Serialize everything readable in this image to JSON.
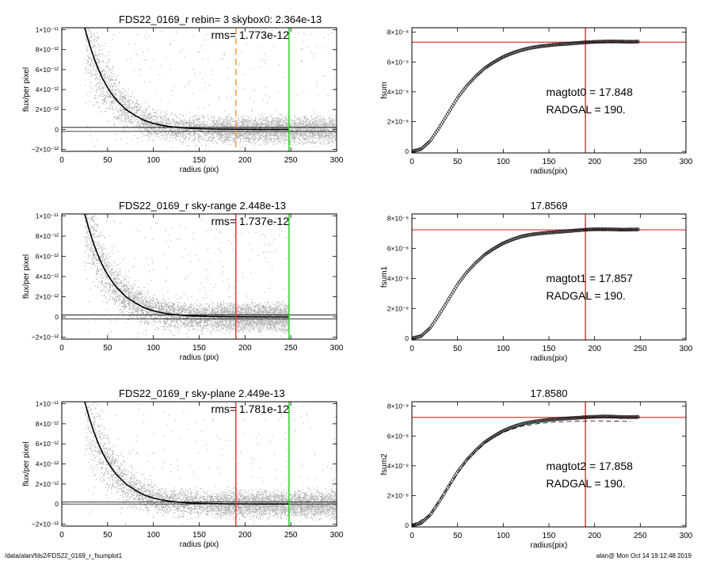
{
  "footer": {
    "path": "/data/alan/fds2/FDS22_0169_r_fsumplot1",
    "user_date": "alan@  Mon Oct 14 19:12:48 2019"
  },
  "colors": {
    "points": "#a0a0a0",
    "profile": "#000000",
    "red_line": "#e03a3a",
    "green_line": "#2bd12b",
    "orange_line": "#f0a040"
  },
  "chart_data": [
    {
      "type": "scatter",
      "panel": "left-top",
      "title": "FDS22_0169_r rebin= 3    skybox0:  2.364e-13",
      "annotation": "rms= 1.773e-12",
      "xlabel": "radius (pix)",
      "ylabel": "flux/per pixel",
      "xlim": [
        0,
        300
      ],
      "ylim": [
        -2.2e-12,
        1.02e-11
      ],
      "xticks": [
        0,
        50,
        100,
        150,
        200,
        250,
        300
      ],
      "xtick_labels": [
        "0",
        "50",
        "100",
        "150",
        "200",
        "250",
        "300"
      ],
      "yticks": [
        -2e-12,
        0,
        2e-12,
        4e-12,
        6e-12,
        8e-12,
        1e-11
      ],
      "ytick_labels": [
        "−2×10⁻¹²",
        "0",
        "2×10⁻¹²",
        "4×10⁻¹²",
        "6×10⁻¹²",
        "8×10⁻¹²",
        "1×10⁻¹¹"
      ],
      "profile": {
        "r": [
          25,
          30,
          35,
          40,
          45,
          50,
          55,
          60,
          70,
          80,
          90,
          100,
          110,
          120,
          140,
          160,
          180,
          200,
          220,
          248
        ],
        "flux": [
          1.02e-11,
          8.6e-12,
          7.2e-12,
          6e-12,
          5e-12,
          4.2e-12,
          3.5e-12,
          2.9e-12,
          2e-12,
          1.4e-12,
          9e-13,
          6e-13,
          4e-13,
          2.5e-13,
          1e-13,
          5e-14,
          2e-14,
          1e-14,
          5e-15,
          0
        ]
      },
      "sky_band": [
        -2e-13,
        2e-13
      ],
      "scatter_range": [
        -2e-12,
        1e-11
      ],
      "scatter_extent": 300,
      "vlines": [
        {
          "x": 190,
          "color": "#f0a040",
          "style": "dashed"
        },
        {
          "x": 248,
          "color": "#2bd12b",
          "style": "solid"
        }
      ]
    },
    {
      "type": "line",
      "panel": "right-top",
      "title": "",
      "xlabel": "radius(pix)",
      "ylabel": "fsum",
      "xlim": [
        0,
        300
      ],
      "ylim": [
        -1e-09,
        8.3e-08
      ],
      "xticks": [
        0,
        50,
        100,
        150,
        200,
        250,
        300
      ],
      "xtick_labels": [
        "0",
        "50",
        "100",
        "150",
        "200",
        "250",
        "300"
      ],
      "yticks": [
        0,
        2e-08,
        4e-08,
        6e-08,
        8e-08
      ],
      "ytick_labels": [
        "0",
        "2×10⁻⁸",
        "4×10⁻⁸",
        "6×10⁻⁸",
        "8×10⁻⁸"
      ],
      "curve": {
        "r": [
          0,
          10,
          20,
          30,
          40,
          50,
          60,
          70,
          80,
          90,
          100,
          110,
          120,
          130,
          140,
          150,
          160,
          170,
          180,
          190,
          200,
          210,
          220,
          230,
          240,
          248
        ],
        "fsum": [
          0,
          1.5e-09,
          7e-09,
          1.6e-08,
          2.6e-08,
          3.6e-08,
          4.4e-08,
          5.05e-08,
          5.6e-08,
          6e-08,
          6.35e-08,
          6.6e-08,
          6.8e-08,
          6.95e-08,
          7.05e-08,
          7.12e-08,
          7.18e-08,
          7.22e-08,
          7.27e-08,
          7.32e-08,
          7.35e-08,
          7.37e-08,
          7.38e-08,
          7.37e-08,
          7.36e-08,
          7.37e-08
        ]
      },
      "hline": 7.33e-08,
      "vline": 190,
      "annotations": [
        "magtot0 =  17.848",
        "RADGAL =    190."
      ]
    },
    {
      "type": "scatter",
      "panel": "left-middle",
      "title": "FDS22_0169_r sky-range  2.448e-13",
      "annotation": "rms= 1.737e-12",
      "xlabel": "radius (pix)",
      "ylabel": "flux/per pixel",
      "xlim": [
        0,
        300
      ],
      "ylim": [
        -2.2e-12,
        1.02e-11
      ],
      "xticks": [
        0,
        50,
        100,
        150,
        200,
        250,
        300
      ],
      "xtick_labels": [
        "0",
        "50",
        "100",
        "150",
        "200",
        "250",
        "300"
      ],
      "yticks": [
        -2e-12,
        0,
        2e-12,
        4e-12,
        6e-12,
        8e-12,
        1e-11
      ],
      "ytick_labels": [
        "−2×10⁻¹²",
        "0",
        "2×10⁻¹²",
        "4×10⁻¹²",
        "6×10⁻¹²",
        "8×10⁻¹²",
        "1×10⁻¹¹"
      ],
      "profile": {
        "r": [
          25,
          30,
          35,
          40,
          45,
          50,
          55,
          60,
          70,
          80,
          90,
          100,
          110,
          120,
          140,
          160,
          180,
          200,
          220,
          248
        ],
        "flux": [
          1.02e-11,
          8.6e-12,
          7.2e-12,
          6e-12,
          5e-12,
          4.2e-12,
          3.5e-12,
          2.9e-12,
          2e-12,
          1.4e-12,
          9e-13,
          6e-13,
          4e-13,
          2.5e-13,
          1e-13,
          5e-14,
          2e-14,
          1e-14,
          5e-15,
          0
        ]
      },
      "sky_band": [
        -2e-13,
        2e-13
      ],
      "scatter_range": [
        -2e-12,
        1e-11
      ],
      "scatter_extent": 248,
      "vlines": [
        {
          "x": 190,
          "color": "#e03a3a",
          "style": "solid"
        },
        {
          "x": 248,
          "color": "#2bd12b",
          "style": "solid"
        }
      ]
    },
    {
      "type": "line",
      "panel": "right-middle",
      "title": "17.8569",
      "xlabel": "radius(pix)",
      "ylabel": "fsum1",
      "xlim": [
        0,
        300
      ],
      "ylim": [
        -1e-09,
        8.3e-08
      ],
      "xticks": [
        0,
        50,
        100,
        150,
        200,
        250,
        300
      ],
      "xtick_labels": [
        "0",
        "50",
        "100",
        "150",
        "200",
        "250",
        "300"
      ],
      "yticks": [
        0,
        2e-08,
        4e-08,
        6e-08,
        8e-08
      ],
      "ytick_labels": [
        "0",
        "2×10⁻⁸",
        "4×10⁻⁸",
        "6×10⁻⁸",
        "8×10⁻⁸"
      ],
      "curve": {
        "r": [
          0,
          10,
          20,
          30,
          40,
          50,
          60,
          70,
          80,
          90,
          100,
          110,
          120,
          130,
          140,
          150,
          160,
          170,
          180,
          190,
          200,
          210,
          220,
          230,
          240,
          248
        ],
        "fsum": [
          0,
          1.5e-09,
          7e-09,
          1.6e-08,
          2.6e-08,
          3.6e-08,
          4.4e-08,
          5.05e-08,
          5.6e-08,
          6e-08,
          6.35e-08,
          6.6e-08,
          6.8e-08,
          6.92e-08,
          7e-08,
          7.06e-08,
          7.1e-08,
          7.15e-08,
          7.2e-08,
          7.25e-08,
          7.28e-08,
          7.28e-08,
          7.27e-08,
          7.25e-08,
          7.26e-08,
          7.27e-08
        ]
      },
      "hline": 7.24e-08,
      "vline": 190,
      "annotations": [
        "magtot1 =  17.857",
        "RADGAL =    190."
      ]
    },
    {
      "type": "scatter",
      "panel": "left-bottom",
      "title": "FDS22_0169_r sky-plane  2.449e-13",
      "annotation": "rms= 1.781e-12",
      "xlabel": "radius (pix)",
      "ylabel": "flux/per pixel",
      "xlim": [
        0,
        300
      ],
      "ylim": [
        -2.2e-12,
        1.02e-11
      ],
      "xticks": [
        0,
        50,
        100,
        150,
        200,
        250,
        300
      ],
      "xtick_labels": [
        "0",
        "50",
        "100",
        "150",
        "200",
        "250",
        "300"
      ],
      "yticks": [
        -2e-12,
        0,
        2e-12,
        4e-12,
        6e-12,
        8e-12,
        1e-11
      ],
      "ytick_labels": [
        "−2×10⁻¹²",
        "0",
        "2×10⁻¹²",
        "4×10⁻¹²",
        "6×10⁻¹²",
        "8×10⁻¹²",
        "1×10⁻¹¹"
      ],
      "profile": {
        "r": [
          25,
          30,
          35,
          40,
          45,
          50,
          55,
          60,
          70,
          80,
          90,
          100,
          110,
          120,
          140,
          160,
          180,
          200,
          220,
          248
        ],
        "flux": [
          1.02e-11,
          8.6e-12,
          7.2e-12,
          6e-12,
          5e-12,
          4.2e-12,
          3.5e-12,
          2.9e-12,
          2e-12,
          1.4e-12,
          9e-13,
          6e-13,
          4e-13,
          2.5e-13,
          1e-13,
          5e-14,
          2e-14,
          1e-14,
          5e-15,
          0
        ]
      },
      "sky_band": [
        0,
        2e-13
      ],
      "scatter_range": [
        -2e-12,
        1e-11
      ],
      "scatter_extent": 300,
      "vlines": [
        {
          "x": 190,
          "color": "#e03a3a",
          "style": "solid"
        },
        {
          "x": 248,
          "color": "#2bd12b",
          "style": "solid"
        }
      ]
    },
    {
      "type": "line",
      "panel": "right-bottom",
      "title": "17.8580",
      "xlabel": "radius(pix)",
      "ylabel": "fsum2",
      "xlim": [
        0,
        300
      ],
      "ylim": [
        -1e-09,
        8.3e-08
      ],
      "xticks": [
        0,
        50,
        100,
        150,
        200,
        250,
        300
      ],
      "xtick_labels": [
        "0",
        "50",
        "100",
        "150",
        "200",
        "250",
        "300"
      ],
      "yticks": [
        0,
        2e-08,
        4e-08,
        6e-08,
        8e-08
      ],
      "ytick_labels": [
        "0",
        "2×10⁻⁸",
        "4×10⁻⁸",
        "6×10⁻⁸",
        "8×10⁻⁸"
      ],
      "curve": {
        "r": [
          0,
          10,
          20,
          30,
          40,
          50,
          60,
          70,
          80,
          90,
          100,
          110,
          120,
          130,
          140,
          150,
          160,
          170,
          180,
          190,
          200,
          210,
          220,
          230,
          240,
          248
        ],
        "fsum": [
          0,
          1.5e-09,
          7e-09,
          1.6e-08,
          2.6e-08,
          3.6e-08,
          4.4e-08,
          5.05e-08,
          5.6e-08,
          6e-08,
          6.35e-08,
          6.6e-08,
          6.8e-08,
          6.93e-08,
          7.02e-08,
          7.09e-08,
          7.14e-08,
          7.18e-08,
          7.22e-08,
          7.26e-08,
          7.29e-08,
          7.31e-08,
          7.3e-08,
          7.27e-08,
          7.27e-08,
          7.28e-08
        ]
      },
      "dashed_curve": {
        "r": [
          0,
          20,
          40,
          60,
          80,
          100,
          120,
          140,
          160,
          180,
          200,
          220,
          240
        ],
        "fsum": [
          0,
          7e-09,
          2.6e-08,
          4.4e-08,
          5.55e-08,
          6.25e-08,
          6.65e-08,
          6.85e-08,
          6.95e-08,
          7e-08,
          7.02e-08,
          7e-08,
          6.97e-08
        ]
      },
      "hline": 7.25e-08,
      "vline": 190,
      "annotations": [
        "magtot2 =  17.858",
        "RADGAL =    190."
      ]
    }
  ]
}
